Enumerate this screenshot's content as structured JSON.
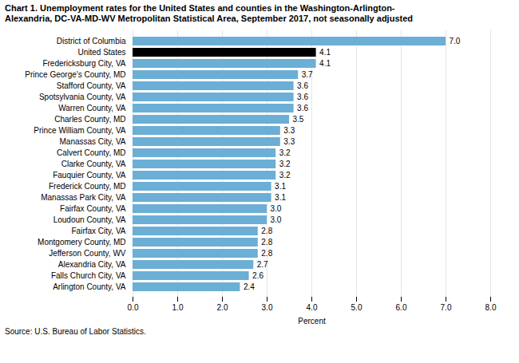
{
  "chart_data": {
    "type": "bar",
    "orientation": "horizontal",
    "title": "Chart 1. Unemployment rates for the United States and counties in the Washington-Arlington-",
    "subtitle": "Alexandria, DC-VA-MD-WV Metropolitan Statistical Area, September 2017, not seasonally adjusted",
    "source": "Source: U.S. Bureau of Labor Statistics.",
    "categories": [
      "Arlington County, VA",
      "Falls Church City, VA",
      "Alexandria City, VA",
      "Jefferson County, WV",
      "Montgomery County, MD",
      "Fairfax City, VA",
      "Loudoun County, VA",
      "Fairfax County, VA",
      "Manassas Park City, VA",
      "Frederick County, MD",
      "Fauquier County, VA",
      "Clarke County, VA",
      "Calvert County, MD",
      "Manassas City, VA",
      "Prince William County, VA",
      "Charles County, MD",
      "Warren County, VA",
      "Spotsylvania County, VA",
      "Stafford County, VA",
      "Prince George's County, MD",
      "Fredericksburg City, VA",
      "United States",
      "District of Columbia"
    ],
    "values": [
      2.4,
      2.6,
      2.7,
      2.8,
      2.8,
      2.8,
      3.0,
      3.0,
      3.1,
      3.1,
      3.2,
      3.2,
      3.2,
      3.3,
      3.3,
      3.5,
      3.6,
      3.6,
      3.6,
      3.7,
      4.1,
      4.1,
      7.0
    ],
    "value_labels": [
      "2.4",
      "2.6",
      "2.7",
      "2.8",
      "2.8",
      "2.8",
      "3.0",
      "3.0",
      "3.1",
      "3.1",
      "3.2",
      "3.2",
      "3.2",
      "3.3",
      "3.3",
      "3.5",
      "3.6",
      "3.6",
      "3.6",
      "3.7",
      "4.1",
      "4.1",
      "7.0"
    ],
    "colors": [
      "#6baed6",
      "#6baed6",
      "#6baed6",
      "#6baed6",
      "#6baed6",
      "#6baed6",
      "#6baed6",
      "#6baed6",
      "#6baed6",
      "#6baed6",
      "#6baed6",
      "#6baed6",
      "#6baed6",
      "#6baed6",
      "#6baed6",
      "#6baed6",
      "#6baed6",
      "#6baed6",
      "#6baed6",
      "#6baed6",
      "#6baed6",
      "#000000",
      "#6baed6"
    ],
    "data_labels": true,
    "xlabel": "Percent",
    "xlim": [
      0,
      8.0
    ],
    "xticks": [
      {
        "value": 0.0,
        "label": "0.0"
      },
      {
        "value": 1.0,
        "label": "1.0"
      },
      {
        "value": 2.0,
        "label": "2.0"
      },
      {
        "value": 3.0,
        "label": "3.0"
      },
      {
        "value": 4.0,
        "label": "4.0"
      },
      {
        "value": 5.0,
        "label": "5.0"
      },
      {
        "value": 6.0,
        "label": "6.0"
      },
      {
        "value": 7.0,
        "label": "7.0"
      },
      {
        "value": 8.0,
        "label": "8.0"
      }
    ],
    "grid": true
  }
}
